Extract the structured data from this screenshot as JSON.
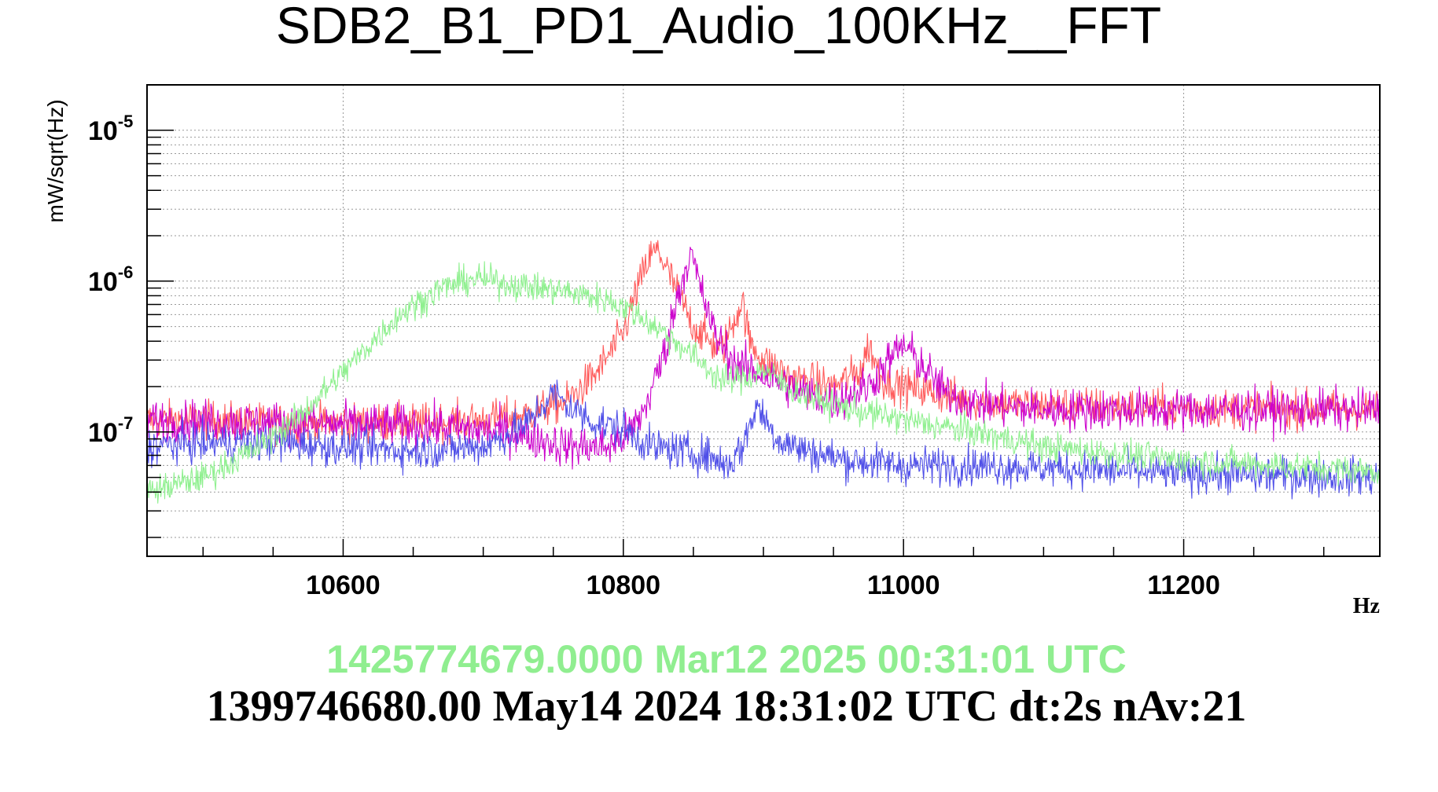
{
  "chart_data": {
    "type": "line",
    "title": "SDB2_B1_PD1_Audio_100KHz__FFT",
    "xlabel": "Hz",
    "ylabel": "mW/sqrt(Hz)",
    "xlim": [
      10460,
      11340
    ],
    "ylim": [
      1.5e-08,
      2e-05
    ],
    "yscale": "log",
    "grid": true,
    "x_ticks": [
      10600,
      10800,
      11000,
      11200
    ],
    "x_tick_labels": [
      "10600",
      "10800",
      "11000",
      "11200"
    ],
    "y_ticks": [
      {
        "base": "10",
        "exp": "-5",
        "value": 1e-05
      },
      {
        "base": "10",
        "exp": "-6",
        "value": 1e-06
      },
      {
        "base": "10",
        "exp": "-7",
        "value": 1e-07
      }
    ],
    "series": [
      {
        "color": "#ff5a5a",
        "x": [
          10460,
          10500,
          10550,
          10600,
          10650,
          10700,
          10730,
          10760,
          10780,
          10800,
          10810,
          10820,
          10825,
          10835,
          10850,
          10870,
          10885,
          10890,
          10900,
          10920,
          10950,
          10970,
          10975,
          10985,
          11000,
          11050,
          11100,
          11200,
          11340
        ],
        "y": [
          1.2e-07,
          1.2e-07,
          1.15e-07,
          1.15e-07,
          1.15e-07,
          1.2e-07,
          1.3e-07,
          1.6e-07,
          2.4e-07,
          4.5e-07,
          9e-07,
          1.5e-06,
          1.6e-06,
          1e-06,
          5e-07,
          3.4e-07,
          7.5e-07,
          4e-07,
          3e-07,
          2.3e-07,
          2e-07,
          2.6e-07,
          3.8e-07,
          2.2e-07,
          2e-07,
          1.6e-07,
          1.5e-07,
          1.45e-07,
          1.4e-07
        ],
        "noise": 0.09
      },
      {
        "color": "#cc00cc",
        "x": [
          10460,
          10550,
          10650,
          10720,
          10760,
          10790,
          10805,
          10815,
          10830,
          10840,
          10848,
          10855,
          10865,
          10880,
          10900,
          10930,
          10950,
          10975,
          10990,
          11000,
          11010,
          11030,
          11060,
          11100,
          11200,
          11340
        ],
        "y": [
          1.2e-07,
          1.15e-07,
          1.1e-07,
          1e-07,
          8e-08,
          8e-08,
          1e-07,
          1.4e-07,
          3.5e-07,
          9e-07,
          1.55e-06,
          9e-07,
          4.5e-07,
          2.8e-07,
          2.4e-07,
          1.8e-07,
          1.6e-07,
          2e-07,
          3e-07,
          3.8e-07,
          3e-07,
          1.8e-07,
          1.5e-07,
          1.4e-07,
          1.4e-07,
          1.4e-07
        ],
        "noise": 0.1
      },
      {
        "color": "#4f4fe8",
        "x": [
          10460,
          10500,
          10550,
          10600,
          10650,
          10700,
          10730,
          10750,
          10760,
          10780,
          10800,
          10820,
          10840,
          10860,
          10875,
          10885,
          10895,
          10910,
          10930,
          10960,
          11000,
          11050,
          11100,
          11200,
          11340
        ],
        "y": [
          8e-08,
          8.5e-08,
          8.5e-08,
          8e-08,
          7.5e-08,
          8e-08,
          1.1e-07,
          1.8e-07,
          1.5e-07,
          1.15e-07,
          1.05e-07,
          8e-08,
          7.5e-08,
          7e-08,
          6e-08,
          8e-08,
          1.5e-07,
          9e-08,
          7.5e-08,
          6.5e-08,
          6e-08,
          6e-08,
          5.8e-08,
          5.3e-08,
          5e-08
        ],
        "noise": 0.09
      },
      {
        "color": "#8ff08f",
        "x": [
          10460,
          10500,
          10540,
          10570,
          10600,
          10640,
          10670,
          10695,
          10720,
          10760,
          10790,
          10810,
          10830,
          10850,
          10870,
          10890,
          10900,
          10920,
          10950,
          11000,
          11050,
          11100,
          11200,
          11340
        ],
        "y": [
          4e-08,
          5e-08,
          8e-08,
          1.3e-07,
          2.5e-07,
          6e-07,
          9e-07,
          1.05e-06,
          9.5e-07,
          8.5e-07,
          7.5e-07,
          6e-07,
          4.5e-07,
          3.2e-07,
          2.2e-07,
          2.3e-07,
          2.6e-07,
          1.9e-07,
          1.5e-07,
          1.2e-07,
          1e-07,
          8e-08,
          6.5e-08,
          5.5e-08
        ],
        "noise": 0.07
      }
    ]
  },
  "footer": {
    "green_line": "1425774679.0000 Mar12 2025 00:31:01 UTC",
    "green_color": "#90ee90",
    "black_line": "1399746680.00 May14 2024 18:31:02 UTC dt:2s nAv:21"
  }
}
